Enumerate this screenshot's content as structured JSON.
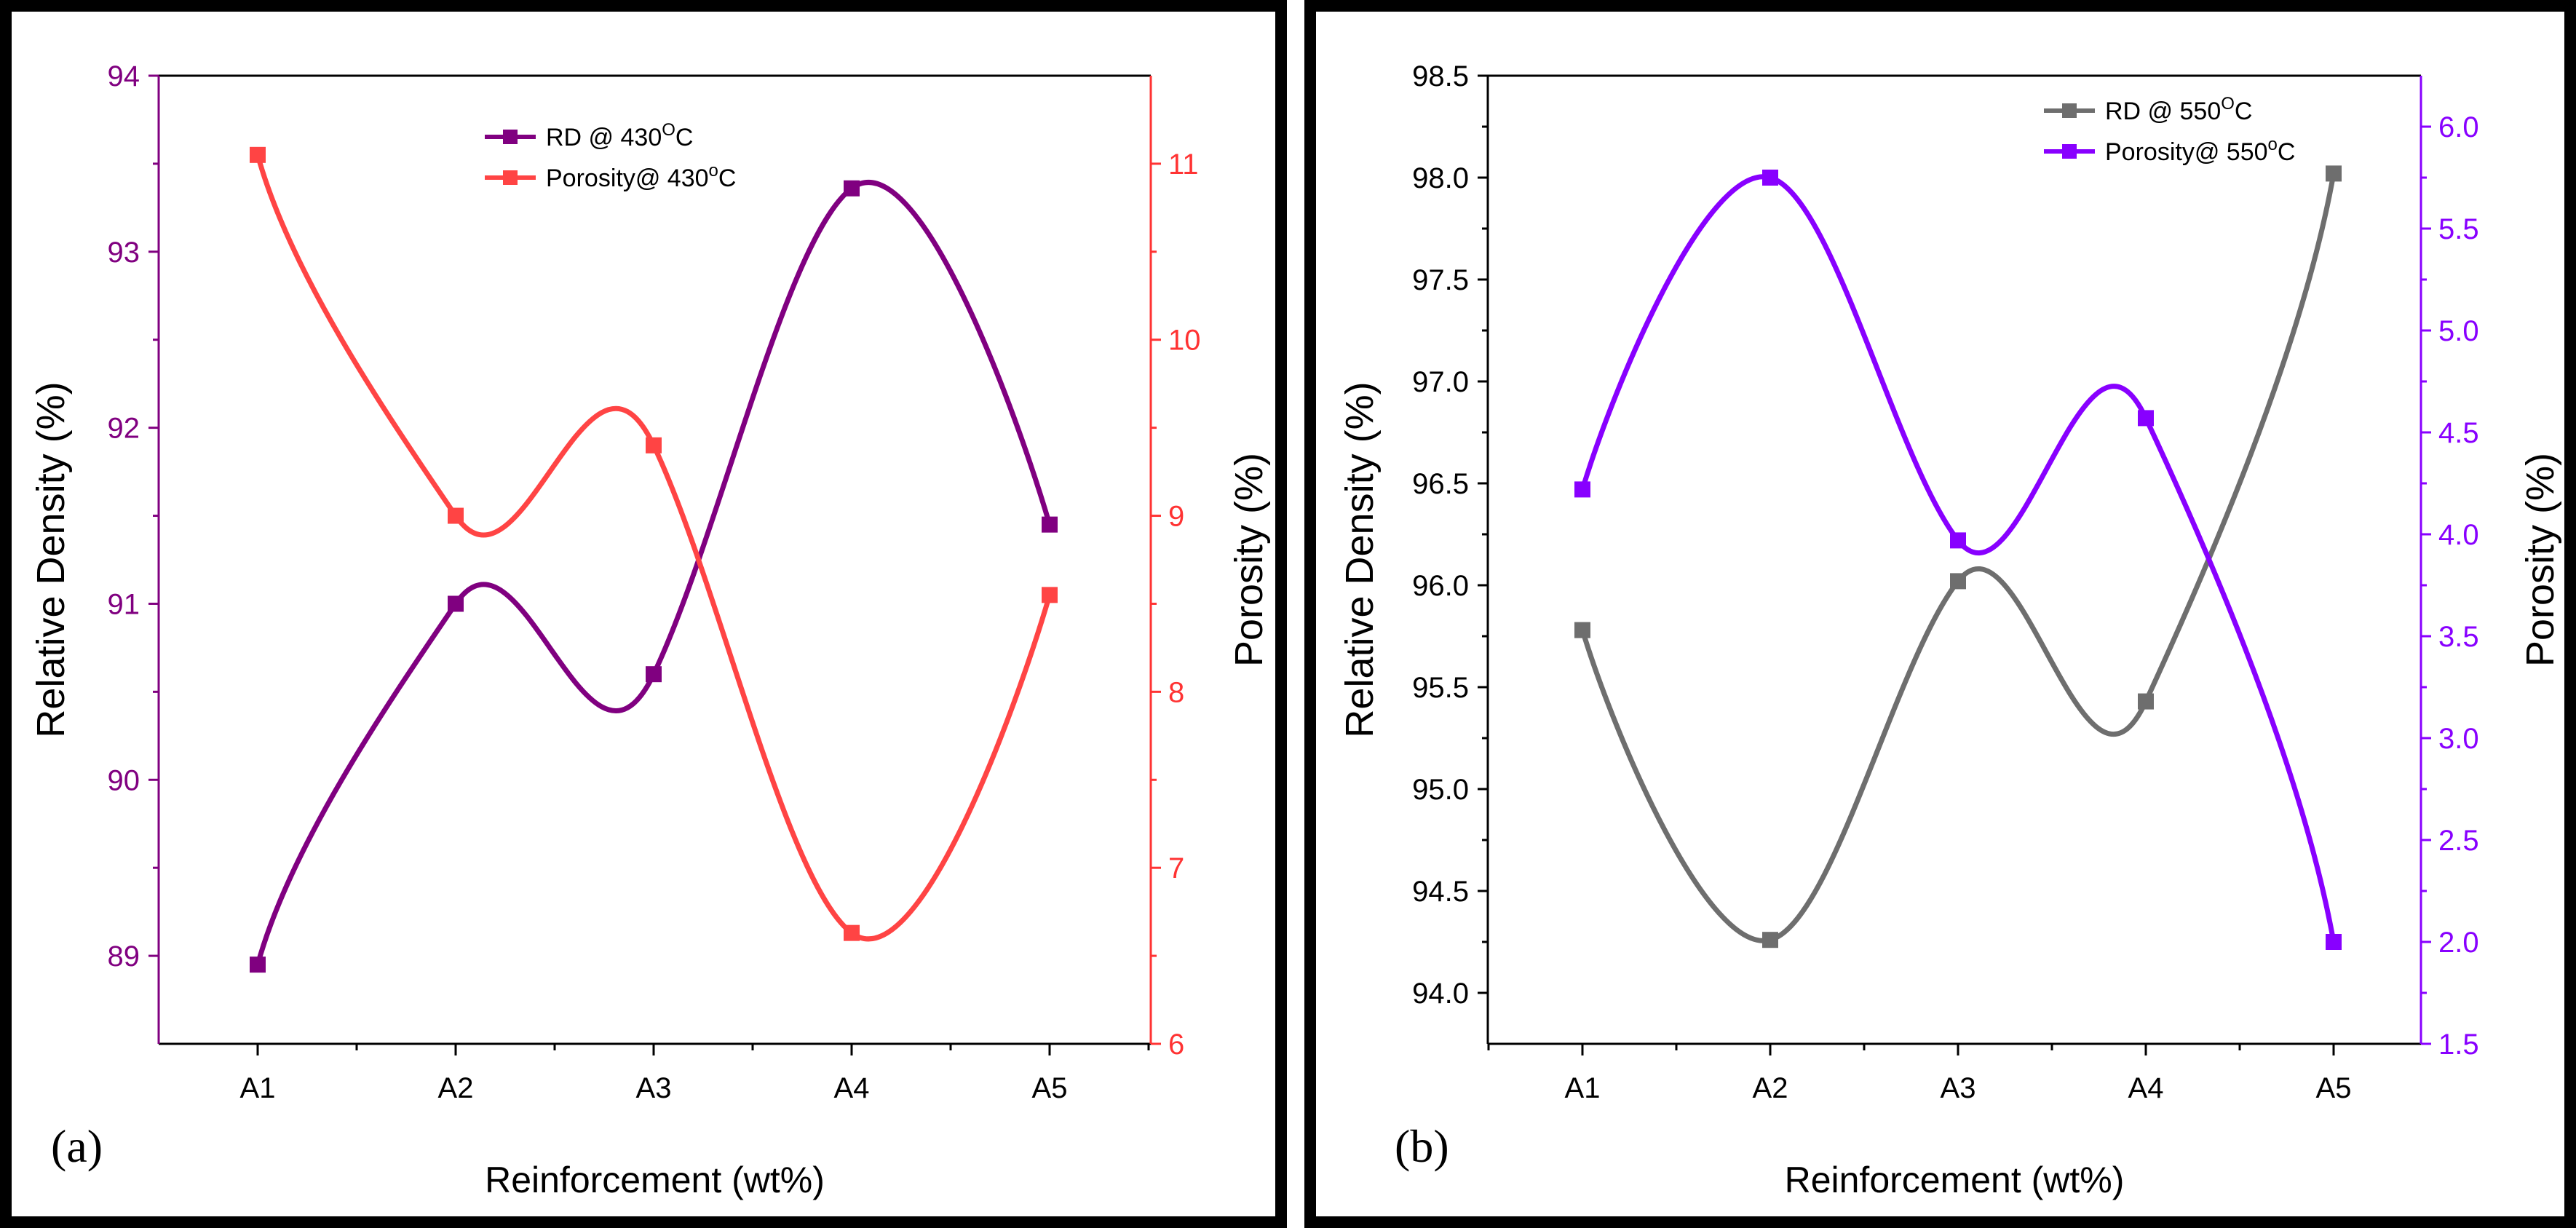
{
  "chart_data": [
    {
      "type": "line",
      "panel_label": "(a)",
      "xlabel": "Reinforcement (wt%)",
      "ylabel_left": "Relative Density (%)",
      "ylabel_right": "Porosity (%)",
      "categories": [
        "A1",
        "A2",
        "A3",
        "A4",
        "A5"
      ],
      "ylim_left": [
        88.5,
        94
      ],
      "yticks_left": [
        89,
        90,
        91,
        92,
        93,
        94
      ],
      "ylim_right": [
        6,
        11.5
      ],
      "yticks_right": [
        6,
        7,
        8,
        9,
        10,
        11
      ],
      "legend": "top-center",
      "colors": {
        "left_axis": "#800080",
        "right_axis": "#ff3333"
      },
      "series": [
        {
          "name": "RD @ 430",
          "sup": "O",
          "suffix": "C",
          "axis": "left",
          "color": "#800080",
          "values": [
            88.95,
            91.0,
            90.6,
            93.36,
            91.45
          ]
        },
        {
          "name": "Porosity@ 430",
          "sup": "o",
          "suffix": "C",
          "axis": "right",
          "color": "#ff4444",
          "values": [
            11.05,
            9.0,
            9.4,
            6.63,
            8.55
          ]
        }
      ]
    },
    {
      "type": "line",
      "panel_label": "(b)",
      "xlabel": "Reinforcement (wt%)",
      "ylabel_left": "Relative Density (%)",
      "ylabel_right": "Porosity (%)",
      "categories": [
        "A1",
        "A2",
        "A3",
        "A4",
        "A5"
      ],
      "ylim_left": [
        93.75,
        98.5
      ],
      "yticks_left": [
        94.0,
        94.5,
        95.0,
        95.5,
        96.0,
        96.5,
        97.0,
        97.5,
        98.0,
        98.5
      ],
      "ylim_right": [
        1.5,
        6.25
      ],
      "yticks_right": [
        1.5,
        2.0,
        2.5,
        3.0,
        3.5,
        4.0,
        4.5,
        5.0,
        5.5,
        6.0
      ],
      "legend": "top-right",
      "colors": {
        "left_axis": "#000000",
        "right_axis": "#8800ff"
      },
      "series": [
        {
          "name": "RD @ 550",
          "sup": "O",
          "suffix": "C",
          "axis": "left",
          "color": "#6e6e6e",
          "values": [
            95.78,
            94.26,
            96.02,
            95.43,
            98.02
          ]
        },
        {
          "name": "Porosity@ 550",
          "sup": "o",
          "suffix": "C",
          "axis": "right",
          "color": "#8800ff",
          "values": [
            4.22,
            5.75,
            3.97,
            4.57,
            2.0
          ]
        }
      ]
    }
  ]
}
